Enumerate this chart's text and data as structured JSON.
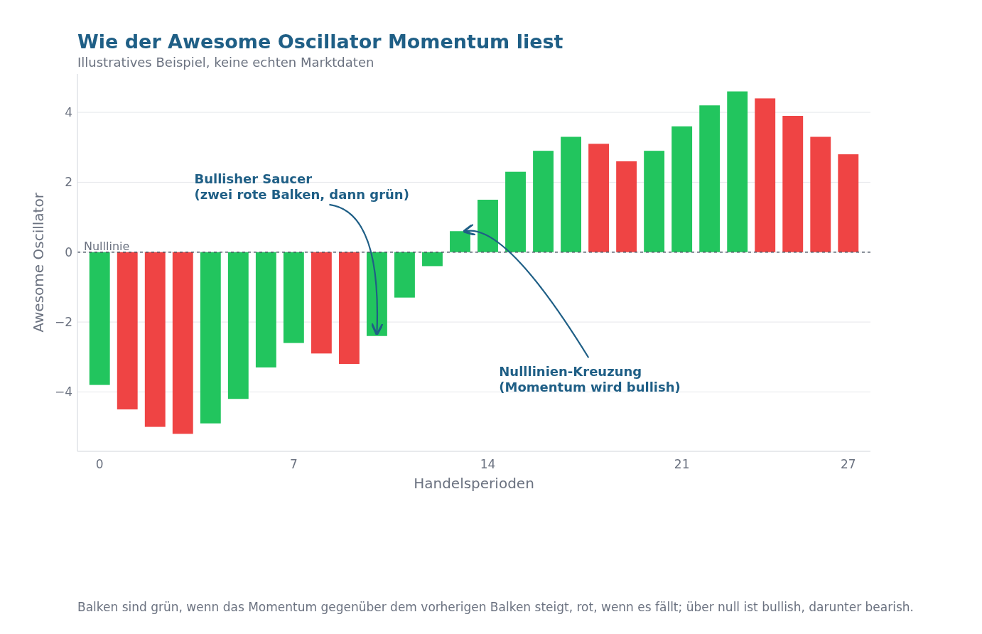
{
  "chart_data": {
    "type": "bar",
    "title": "Wie der Awesome Oscillator Momentum liest",
    "subtitle": "Illustratives Beispiel, keine echten Marktdaten",
    "xlabel": "Handelsperioden",
    "ylabel": "Awesome Oscillator",
    "x": [
      0,
      1,
      2,
      3,
      4,
      5,
      6,
      7,
      8,
      9,
      10,
      11,
      12,
      13,
      14,
      15,
      16,
      17,
      18,
      19,
      20,
      21,
      22,
      23,
      24,
      25,
      26,
      27
    ],
    "values": [
      -3.8,
      -4.5,
      -5.0,
      -5.2,
      -4.9,
      -4.2,
      -3.3,
      -2.6,
      -2.9,
      -3.2,
      -2.4,
      -1.3,
      -0.4,
      0.6,
      1.5,
      2.3,
      2.9,
      3.3,
      3.1,
      2.6,
      2.9,
      3.6,
      4.2,
      4.6,
      4.4,
      3.9,
      3.3,
      2.8
    ],
    "colors": [
      "#22c55e",
      "#ef4444",
      "#ef4444",
      "#ef4444",
      "#22c55e",
      "#22c55e",
      "#22c55e",
      "#22c55e",
      "#ef4444",
      "#ef4444",
      "#22c55e",
      "#22c55e",
      "#22c55e",
      "#22c55e",
      "#22c55e",
      "#22c55e",
      "#22c55e",
      "#22c55e",
      "#ef4444",
      "#ef4444",
      "#22c55e",
      "#22c55e",
      "#22c55e",
      "#22c55e",
      "#ef4444",
      "#ef4444",
      "#ef4444",
      "#ef4444"
    ],
    "xlim": [
      -0.8,
      27.8
    ],
    "ylim": [
      -5.7,
      5.1
    ],
    "xticks": [
      0,
      7,
      14,
      21,
      27
    ],
    "yticks": [
      -4,
      -2,
      0,
      2,
      4
    ],
    "grid": "y",
    "ref_lines": [
      {
        "axis": "y",
        "value": 0,
        "label": "Nulllinie",
        "color": "#4b5563",
        "line_style": "dashed"
      }
    ],
    "annotations": [
      {
        "text": "Bullisher Saucer\n(zwei rote Balken, dann grün)",
        "x": 10,
        "y": -2.3
      },
      {
        "text": "Nulllinien-Kreuzung\n(Momentum wird bullish)",
        "x": 13.2,
        "y": 0.6
      },
      "Balken sind grün, wenn das Momentum gegenüber dem vorherigen Balken steigt, rot, wenn es fällt; über null ist bullish, darunter bearish."
    ]
  }
}
